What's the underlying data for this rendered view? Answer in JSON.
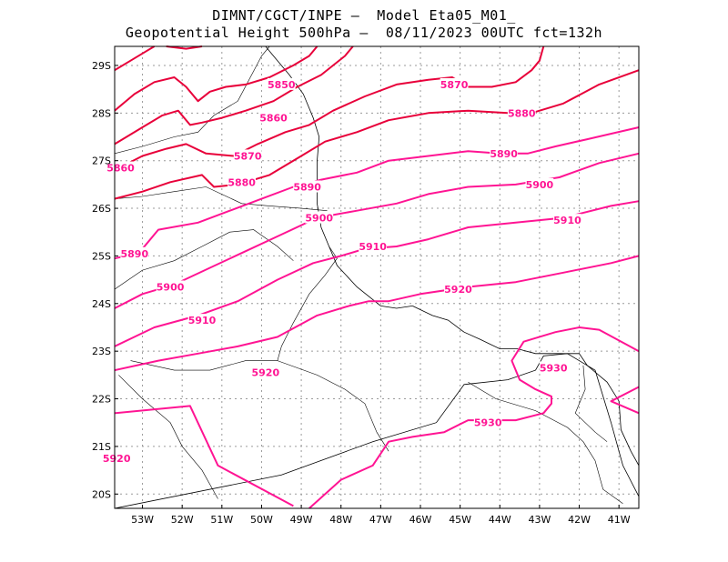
{
  "title_line1": "DIMNT/CGCT/INPE –  Model Eta05_M01_",
  "title_line2": "Geopotential Height 500hPa –  08/11/2023 00UTC fct=132h",
  "map": {
    "lon_range": [
      -53.7,
      -40.5
    ],
    "lat_range": [
      -29.4,
      -19.7
    ],
    "grid": true,
    "lon_ticks": [
      "53W",
      "52W",
      "51W",
      "50W",
      "49W",
      "48W",
      "47W",
      "46W",
      "45W",
      "44W",
      "43W",
      "42W",
      "41W"
    ],
    "lat_ticks": [
      "20S",
      "21S",
      "22S",
      "23S",
      "24S",
      "25S",
      "26S",
      "27S",
      "28S",
      "29S"
    ],
    "contour_colors": {
      "upper": "#ff1493",
      "lower": "#e8003a"
    },
    "contours": [
      {
        "value": "5930",
        "pts": [
          [
            -53.7,
            -21.7
          ],
          [
            -51.8,
            -21.85
          ],
          [
            -51.1,
            -20.6
          ],
          [
            -49.2,
            -19.75
          ]
        ]
      },
      {
        "value": "5930",
        "pts": [
          [
            -48.8,
            -19.7
          ],
          [
            -48,
            -20.3
          ],
          [
            -47.2,
            -20.6
          ],
          [
            -46.8,
            -21.1
          ],
          [
            -46.2,
            -21.2
          ],
          [
            -45.4,
            -21.3
          ],
          [
            -44.8,
            -21.55
          ],
          [
            -43.6,
            -21.55
          ],
          [
            -42.9,
            -21.7
          ],
          [
            -42.7,
            -21.9
          ],
          [
            -42.7,
            -22.05
          ],
          [
            -43.1,
            -22.2
          ],
          [
            -43.5,
            -22.4
          ],
          [
            -43.7,
            -22.8
          ],
          [
            -43.4,
            -23.2
          ],
          [
            -42.6,
            -23.4
          ],
          [
            -42,
            -23.5
          ],
          [
            -41.5,
            -23.45
          ],
          [
            -40.5,
            -23.0
          ]
        ]
      },
      {
        "value": "5930",
        "pts": [
          [
            -40.5,
            -21.7
          ],
          [
            -41.2,
            -21.95
          ],
          [
            -40.5,
            -22.25
          ]
        ]
      },
      {
        "value": "5920",
        "pts": [
          [
            -53.7,
            -22.6
          ],
          [
            -52.6,
            -22.8
          ],
          [
            -51.6,
            -22.95
          ],
          [
            -50.6,
            -23.1
          ],
          [
            -49.6,
            -23.3
          ],
          [
            -48.6,
            -23.75
          ],
          [
            -47.8,
            -23.95
          ],
          [
            -47.3,
            -24.05
          ],
          [
            -46.8,
            -24.05
          ],
          [
            -46,
            -24.2
          ],
          [
            -44.8,
            -24.35
          ],
          [
            -43.6,
            -24.45
          ],
          [
            -42.4,
            -24.65
          ],
          [
            -41.2,
            -24.85
          ],
          [
            -40.5,
            -25.0
          ]
        ]
      },
      {
        "value": "5910",
        "pts": [
          [
            -53.7,
            -23.1
          ],
          [
            -52.7,
            -23.5
          ],
          [
            -51.6,
            -23.75
          ],
          [
            -50.6,
            -24.05
          ],
          [
            -49.6,
            -24.5
          ],
          [
            -48.7,
            -24.85
          ],
          [
            -48.0,
            -25.0
          ],
          [
            -47.4,
            -25.15
          ],
          [
            -46.6,
            -25.2
          ],
          [
            -45.8,
            -25.35
          ],
          [
            -44.8,
            -25.6
          ],
          [
            -43.6,
            -25.7
          ],
          [
            -42.4,
            -25.8
          ],
          [
            -41.2,
            -26.05
          ],
          [
            -40.5,
            -26.15
          ]
        ]
      },
      {
        "value": "5900",
        "pts": [
          [
            -53.7,
            -23.9
          ],
          [
            -53.0,
            -24.2
          ],
          [
            -52.2,
            -24.4
          ],
          [
            -51.3,
            -24.75
          ],
          [
            -50.4,
            -25.1
          ],
          [
            -49.5,
            -25.45
          ],
          [
            -48.6,
            -25.8
          ],
          [
            -47.6,
            -25.95
          ],
          [
            -46.6,
            -26.1
          ],
          [
            -45.8,
            -26.3
          ],
          [
            -44.8,
            -26.45
          ],
          [
            -43.6,
            -26.5
          ],
          [
            -42.5,
            -26.65
          ],
          [
            -41.5,
            -26.95
          ],
          [
            -40.5,
            -27.15
          ]
        ]
      },
      {
        "value": "5890",
        "pts": [
          [
            -53.7,
            -24.95
          ],
          [
            -53.1,
            -25.05
          ],
          [
            -52.6,
            -25.55
          ],
          [
            -51.6,
            -25.7
          ],
          [
            -50.8,
            -25.95
          ],
          [
            -50.0,
            -26.2
          ],
          [
            -49.2,
            -26.45
          ],
          [
            -48.5,
            -26.6
          ],
          [
            -47.6,
            -26.75
          ],
          [
            -46.8,
            -27.0
          ],
          [
            -45.8,
            -27.1
          ],
          [
            -44.8,
            -27.2
          ],
          [
            -44.0,
            -27.15
          ],
          [
            -43.3,
            -27.15
          ],
          [
            -42.6,
            -27.3
          ],
          [
            -41.8,
            -27.45
          ],
          [
            -40.5,
            -27.7
          ]
        ]
      },
      {
        "value": "5880",
        "pts": [
          [
            -53.7,
            -26.2
          ],
          [
            -53.0,
            -26.35
          ],
          [
            -52.3,
            -26.55
          ],
          [
            -51.5,
            -26.7
          ],
          [
            -51.2,
            -26.45
          ],
          [
            -50.6,
            -26.5
          ],
          [
            -49.8,
            -26.7
          ],
          [
            -49.0,
            -27.1
          ],
          [
            -48.4,
            -27.4
          ],
          [
            -47.6,
            -27.6
          ],
          [
            -46.8,
            -27.85
          ],
          [
            -45.8,
            -28.0
          ],
          [
            -44.8,
            -28.05
          ],
          [
            -43.8,
            -28.0
          ],
          [
            -43.2,
            -28.0
          ],
          [
            -42.4,
            -28.2
          ],
          [
            -41.5,
            -28.6
          ],
          [
            -40.5,
            -28.9
          ]
        ]
      },
      {
        "value": "5870",
        "pts": [
          [
            -53.7,
            -26.8
          ],
          [
            -53.0,
            -27.1
          ],
          [
            -52.4,
            -27.25
          ],
          [
            -51.9,
            -27.35
          ],
          [
            -51.4,
            -27.15
          ],
          [
            -50.7,
            -27.1
          ],
          [
            -50.1,
            -27.35
          ],
          [
            -49.4,
            -27.6
          ],
          [
            -48.8,
            -27.75
          ],
          [
            -48.2,
            -28.05
          ],
          [
            -47.4,
            -28.35
          ],
          [
            -46.6,
            -28.6
          ],
          [
            -45.8,
            -28.7
          ],
          [
            -45.2,
            -28.75
          ],
          [
            -44.8,
            -28.55
          ],
          [
            -44.2,
            -28.55
          ],
          [
            -43.6,
            -28.65
          ],
          [
            -43.2,
            -28.9
          ],
          [
            -43.0,
            -29.1
          ],
          [
            -42.9,
            -29.4
          ]
        ]
      },
      {
        "value": "5860",
        "pts": [
          [
            -53.7,
            -27.35
          ],
          [
            -53.0,
            -27.7
          ],
          [
            -52.5,
            -27.95
          ],
          [
            -52.1,
            -28.05
          ],
          [
            -51.8,
            -27.75
          ],
          [
            -51.5,
            -27.8
          ],
          [
            -51.0,
            -27.9
          ],
          [
            -50.4,
            -28.05
          ],
          [
            -49.7,
            -28.25
          ],
          [
            -49.1,
            -28.55
          ],
          [
            -48.5,
            -28.8
          ],
          [
            -47.9,
            -29.2
          ],
          [
            -47.7,
            -29.4
          ]
        ]
      },
      {
        "value": "5850",
        "pts": [
          [
            -53.7,
            -28.05
          ],
          [
            -53.2,
            -28.4
          ],
          [
            -52.7,
            -28.65
          ],
          [
            -52.2,
            -28.75
          ],
          [
            -51.9,
            -28.55
          ],
          [
            -51.6,
            -28.25
          ],
          [
            -51.3,
            -28.45
          ],
          [
            -50.9,
            -28.55
          ],
          [
            -50.4,
            -28.6
          ],
          [
            -49.8,
            -28.75
          ],
          [
            -49.2,
            -29.0
          ],
          [
            -48.8,
            -29.2
          ],
          [
            -48.6,
            -29.4
          ]
        ]
      },
      {
        "value": "",
        "pts": [
          [
            -53.7,
            -28.9
          ],
          [
            -53.3,
            -29.1
          ],
          [
            -52.9,
            -29.3
          ],
          [
            -52.7,
            -29.4
          ]
        ]
      },
      {
        "value": "",
        "pts": [
          [
            -52.4,
            -29.4
          ],
          [
            -51.9,
            -29.35
          ],
          [
            -51.5,
            -29.4
          ]
        ]
      }
    ],
    "labels": [
      {
        "text": "5920",
        "lon": -53.65,
        "lat": -20.75
      },
      {
        "text": "5930",
        "lon": -44.3,
        "lat": -21.5
      },
      {
        "text": "5930",
        "lon": -42.65,
        "lat": -22.65
      },
      {
        "text": "5920",
        "lon": -49.9,
        "lat": -22.55
      },
      {
        "text": "5910",
        "lon": -51.5,
        "lat": -23.65
      },
      {
        "text": "5920",
        "lon": -45.05,
        "lat": -24.3
      },
      {
        "text": "5900",
        "lon": -52.3,
        "lat": -24.35
      },
      {
        "text": "5910",
        "lon": -47.2,
        "lat": -25.2
      },
      {
        "text": "5910",
        "lon": -42.3,
        "lat": -25.75
      },
      {
        "text": "5890",
        "lon": -53.2,
        "lat": -25.05
      },
      {
        "text": "5900",
        "lon": -48.55,
        "lat": -25.8
      },
      {
        "text": "5890",
        "lon": -48.85,
        "lat": -26.45
      },
      {
        "text": "5900",
        "lon": -43.0,
        "lat": -26.5
      },
      {
        "text": "5880",
        "lon": -50.5,
        "lat": -26.55
      },
      {
        "text": "5890",
        "lon": -43.9,
        "lat": -27.15
      },
      {
        "text": "5860",
        "lon": -53.55,
        "lat": -26.85
      },
      {
        "text": "5870",
        "lon": -50.35,
        "lat": -27.1
      },
      {
        "text": "5880",
        "lon": -43.45,
        "lat": -28.0
      },
      {
        "text": "5860",
        "lon": -49.7,
        "lat": -27.9
      },
      {
        "text": "5870",
        "lon": -45.15,
        "lat": -28.6
      },
      {
        "text": "5850",
        "lon": -49.5,
        "lat": -28.6
      }
    ],
    "coastline": [
      [
        -53.7,
        -19.7
      ],
      [
        -49.5,
        -20.4
      ],
      [
        -47.2,
        -21.1
      ],
      [
        -45.6,
        -21.5
      ],
      [
        -44.9,
        -22.3
      ],
      [
        -43.8,
        -22.4
      ],
      [
        -43.1,
        -22.6
      ],
      [
        -42.9,
        -22.9
      ],
      [
        -42.3,
        -22.95
      ],
      [
        -41.6,
        -22.6
      ],
      [
        -41.2,
        -21.5
      ],
      [
        -40.9,
        -20.6
      ],
      [
        -40.5,
        -19.95
      ]
    ],
    "coastline2": [
      [
        -47.0,
        -23.95
      ],
      [
        -47.6,
        -24.35
      ],
      [
        -48.1,
        -24.8
      ],
      [
        -48.3,
        -25.2
      ],
      [
        -48.5,
        -25.6
      ],
      [
        -48.6,
        -26.1
      ],
      [
        -48.6,
        -26.6
      ],
      [
        -48.6,
        -27.0
      ],
      [
        -48.55,
        -27.5
      ],
      [
        -48.7,
        -27.9
      ],
      [
        -48.95,
        -28.4
      ],
      [
        -49.3,
        -28.8
      ],
      [
        -49.7,
        -29.2
      ],
      [
        -49.9,
        -29.4
      ]
    ],
    "coastline3": [
      [
        -46.2,
        -23.95
      ],
      [
        -45.7,
        -23.75
      ],
      [
        -45.3,
        -23.65
      ],
      [
        -44.9,
        -23.4
      ],
      [
        -44.5,
        -23.25
      ],
      [
        -44.0,
        -23.05
      ],
      [
        -43.55,
        -23.05
      ],
      [
        -43.1,
        -22.95
      ],
      [
        -42.6,
        -22.95
      ],
      [
        -42.0,
        -22.95
      ],
      [
        -41.8,
        -22.7
      ],
      [
        -41.3,
        -22.35
      ],
      [
        -41.0,
        -21.95
      ],
      [
        -40.95,
        -21.35
      ],
      [
        -40.7,
        -20.9
      ],
      [
        -40.5,
        -20.6
      ]
    ],
    "coastline4": [
      [
        -47.0,
        -23.95
      ],
      [
        -46.6,
        -23.9
      ],
      [
        -46.2,
        -23.95
      ]
    ],
    "borders": [
      [
        [
          -51.1,
          -19.9
        ],
        [
          -51.5,
          -20.5
        ],
        [
          -52.0,
          -21.0
        ],
        [
          -52.3,
          -21.5
        ],
        [
          -53.0,
          -22.0
        ],
        [
          -53.6,
          -22.5
        ]
      ],
      [
        [
          -53.3,
          -22.8
        ],
        [
          -52.2,
          -22.6
        ],
        [
          -51.3,
          -22.6
        ],
        [
          -50.4,
          -22.8
        ],
        [
          -49.6,
          -22.8
        ],
        [
          -49.5,
          -23.1
        ],
        [
          -49.2,
          -23.6
        ],
        [
          -48.8,
          -24.2
        ],
        [
          -48.4,
          -24.6
        ],
        [
          -48.1,
          -24.95
        ],
        [
          -48.3,
          -25.2
        ]
      ],
      [
        [
          -48.35,
          -25.95
        ],
        [
          -49.0,
          -26.0
        ],
        [
          -49.8,
          -26.05
        ],
        [
          -50.5,
          -26.1
        ],
        [
          -51.4,
          -26.45
        ],
        [
          -52.2,
          -26.35
        ],
        [
          -53.0,
          -26.25
        ],
        [
          -53.7,
          -26.2
        ]
      ],
      [
        [
          -53.7,
          -27.15
        ],
        [
          -53.0,
          -27.3
        ],
        [
          -52.2,
          -27.5
        ],
        [
          -51.6,
          -27.6
        ],
        [
          -51.2,
          -27.95
        ],
        [
          -50.6,
          -28.25
        ],
        [
          -50.0,
          -29.2
        ],
        [
          -49.8,
          -29.4
        ]
      ],
      [
        [
          -49.6,
          -22.8
        ],
        [
          -48.6,
          -22.5
        ],
        [
          -47.9,
          -22.2
        ],
        [
          -47.4,
          -21.9
        ],
        [
          -47.1,
          -21.3
        ],
        [
          -46.8,
          -20.9
        ]
      ],
      [
        [
          -44.8,
          -22.35
        ],
        [
          -44.1,
          -22.0
        ],
        [
          -43.1,
          -21.75
        ],
        [
          -42.3,
          -21.4
        ],
        [
          -41.9,
          -21.1
        ],
        [
          -41.6,
          -20.7
        ],
        [
          -41.4,
          -20.1
        ],
        [
          -40.9,
          -19.8
        ]
      ],
      [
        [
          -41.9,
          -22.7
        ],
        [
          -41.85,
          -22.2
        ],
        [
          -42.1,
          -21.7
        ],
        [
          -41.6,
          -21.3
        ],
        [
          -41.3,
          -21.1
        ]
      ],
      [
        [
          -53.7,
          -24.3
        ],
        [
          -53.0,
          -24.7
        ],
        [
          -52.2,
          -24.9
        ],
        [
          -51.5,
          -25.2
        ],
        [
          -50.8,
          -25.5
        ],
        [
          -50.2,
          -25.55
        ],
        [
          -49.6,
          -25.2
        ],
        [
          -49.2,
          -24.9
        ]
      ]
    ]
  }
}
